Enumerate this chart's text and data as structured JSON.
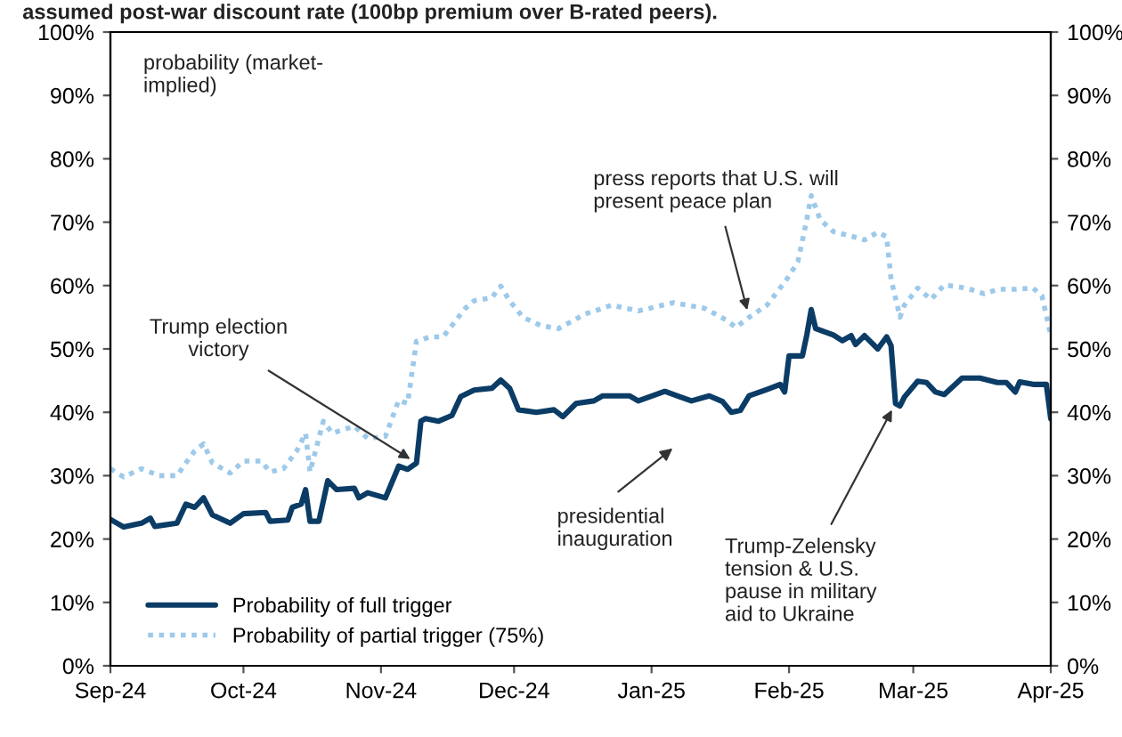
{
  "chart_data": {
    "type": "line",
    "title": "assumed post-war discount rate (100bp premium over B-rated peers).",
    "x": [
      "2024-09-01",
      "2024-09-04",
      "2024-09-08",
      "2024-09-10",
      "2024-09-11",
      "2024-09-16",
      "2024-09-18",
      "2024-09-20",
      "2024-09-22",
      "2024-09-24",
      "2024-09-28",
      "2024-10-01",
      "2024-10-06",
      "2024-10-07",
      "2024-10-11",
      "2024-10-12",
      "2024-10-14",
      "2024-10-15",
      "2024-10-16",
      "2024-10-18",
      "2024-10-20",
      "2024-10-22",
      "2024-10-26",
      "2024-10-27",
      "2024-10-29",
      "2024-11-02",
      "2024-11-05",
      "2024-11-07",
      "2024-11-09",
      "2024-11-10",
      "2024-11-11",
      "2024-11-14",
      "2024-11-17",
      "2024-11-19",
      "2024-11-22",
      "2024-11-26",
      "2024-11-28",
      "2024-11-30",
      "2024-12-02",
      "2024-12-06",
      "2024-12-10",
      "2024-12-12",
      "2024-12-15",
      "2024-12-19",
      "2024-12-21",
      "2024-12-27",
      "2024-12-29",
      "2025-01-04",
      "2025-01-10",
      "2025-01-14",
      "2025-01-17",
      "2025-01-19",
      "2025-01-21",
      "2025-01-23",
      "2025-01-27",
      "2025-01-30",
      "2025-01-31",
      "2025-02-01",
      "2025-02-04",
      "2025-02-05",
      "2025-02-06",
      "2025-02-07",
      "2025-02-11",
      "2025-02-13",
      "2025-02-15",
      "2025-02-16",
      "2025-02-18",
      "2025-02-21",
      "2025-02-23",
      "2025-02-24",
      "2025-02-25",
      "2025-02-26",
      "2025-02-27",
      "2025-03-02",
      "2025-03-04",
      "2025-03-06",
      "2025-03-08",
      "2025-03-12",
      "2025-03-16",
      "2025-03-20",
      "2025-03-22",
      "2025-03-24",
      "2025-03-25",
      "2025-03-28",
      "2025-03-31",
      "2025-04-01"
    ],
    "series": [
      {
        "name": "Probability of full trigger",
        "color": "#0b3c66",
        "line_style": "solid",
        "values": [
          23.1,
          21.9,
          22.5,
          23.3,
          22,
          22.5,
          25.5,
          25,
          26.5,
          23.8,
          22.5,
          24,
          24.2,
          22.8,
          23,
          25,
          25.5,
          27.8,
          22.8,
          22.8,
          29.2,
          27.8,
          28,
          26.5,
          27.3,
          26.5,
          31.5,
          31,
          32,
          38.6,
          39,
          38.6,
          39.5,
          42.5,
          43.5,
          43.8,
          45.1,
          43.8,
          40.4,
          40,
          40.4,
          39.3,
          41.4,
          41.8,
          42.6,
          42.6,
          41.8,
          43.3,
          41.8,
          42.6,
          41.7,
          40,
          40.3,
          42.6,
          43.6,
          44.4,
          43.2,
          48.9,
          48.9,
          52.2,
          56.2,
          53.2,
          52.2,
          51.3,
          52.1,
          50.7,
          52.1,
          50,
          51.9,
          50.5,
          41.4,
          41,
          42.4,
          44.9,
          44.7,
          43.2,
          42.8,
          45.4,
          45.4,
          44.7,
          44.7,
          43.2,
          44.8,
          44.4,
          44.4,
          39
        ]
      },
      {
        "name": "Probability of partial trigger (75%)",
        "color": "#9dc9ea",
        "line_style": "dotted",
        "x": [
          "2024-09-01",
          "2024-09-04",
          "2024-09-08",
          "2024-09-12",
          "2024-09-16",
          "2024-09-18",
          "2024-09-20",
          "2024-09-22",
          "2024-09-24",
          "2024-09-28",
          "2024-10-01",
          "2024-10-05",
          "2024-10-07",
          "2024-10-10",
          "2024-10-13",
          "2024-10-15",
          "2024-10-16",
          "2024-10-19",
          "2024-10-21",
          "2024-10-26",
          "2024-10-29",
          "2024-11-02",
          "2024-11-05",
          "2024-11-07",
          "2024-11-09",
          "2024-11-12",
          "2024-11-15",
          "2024-11-20",
          "2024-11-22",
          "2024-11-26",
          "2024-11-28",
          "2024-11-30",
          "2024-12-03",
          "2024-12-07",
          "2024-12-11",
          "2024-12-17",
          "2024-12-23",
          "2024-12-29",
          "2025-01-06",
          "2025-01-13",
          "2025-01-18",
          "2025-01-20",
          "2025-01-23",
          "2025-01-27",
          "2025-01-30",
          "2025-02-01",
          "2025-02-03",
          "2025-02-05",
          "2025-02-06",
          "2025-02-08",
          "2025-02-11",
          "2025-02-15",
          "2025-02-18",
          "2025-02-21",
          "2025-02-23",
          "2025-02-24",
          "2025-02-26",
          "2025-02-27",
          "2025-03-02",
          "2025-03-05",
          "2025-03-08",
          "2025-03-13",
          "2025-03-17",
          "2025-03-20",
          "2025-03-24",
          "2025-03-28",
          "2025-03-30",
          "2025-04-01"
        ],
        "values": [
          31.1,
          29.8,
          31.1,
          30,
          30,
          32,
          33.9,
          35,
          32,
          30.4,
          32.3,
          32.3,
          30.6,
          31.1,
          33.9,
          36.7,
          30.6,
          38.6,
          36.7,
          37.8,
          35.9,
          36.2,
          41.9,
          41.4,
          51.2,
          51.9,
          51.9,
          56.4,
          57.6,
          58.1,
          59.9,
          57.6,
          55,
          53.7,
          53.2,
          55.5,
          56.9,
          56,
          57.3,
          56.4,
          54.5,
          53.4,
          55,
          56.9,
          59.6,
          61.5,
          63.8,
          70.4,
          74.2,
          70.4,
          68.5,
          67.8,
          67.2,
          68.4,
          67.7,
          61,
          55,
          56.9,
          59.6,
          57.8,
          60.1,
          59.6,
          58.7,
          59.4,
          59.4,
          59.6,
          58.4,
          52.2
        ]
      }
    ],
    "xlim": [
      "2024-09-01",
      "2025-04-01"
    ],
    "xticks": [
      {
        "value": "2024-09-01",
        "label": "Sep-24"
      },
      {
        "value": "2024-10-01",
        "label": "Oct-24"
      },
      {
        "value": "2024-11-01",
        "label": "Nov-24"
      },
      {
        "value": "2024-12-01",
        "label": "Dec-24"
      },
      {
        "value": "2025-01-01",
        "label": "Jan-25"
      },
      {
        "value": "2025-02-01",
        "label": "Feb-25"
      },
      {
        "value": "2025-03-01",
        "label": "Mar-25"
      },
      {
        "value": "2025-04-01",
        "label": "Apr-25"
      }
    ],
    "ylim": [
      0,
      100
    ],
    "yticks": [
      {
        "value": 0,
        "label": "0%"
      },
      {
        "value": 10,
        "label": "10%"
      },
      {
        "value": 20,
        "label": "20%"
      },
      {
        "value": 30,
        "label": "30%"
      },
      {
        "value": 40,
        "label": "40%"
      },
      {
        "value": 50,
        "label": "50%"
      },
      {
        "value": 60,
        "label": "60%"
      },
      {
        "value": 70,
        "label": "70%"
      },
      {
        "value": 80,
        "label": "80%"
      },
      {
        "value": 90,
        "label": "90%"
      },
      {
        "value": 100,
        "label": "100%"
      }
    ],
    "y2lim": [
      0,
      100
    ],
    "y2ticks": [
      {
        "value": 0,
        "label": "0%"
      },
      {
        "value": 10,
        "label": "10%"
      },
      {
        "value": 20,
        "label": "20%"
      },
      {
        "value": 30,
        "label": "30%"
      },
      {
        "value": 40,
        "label": "40%"
      },
      {
        "value": 50,
        "label": "50%"
      },
      {
        "value": 60,
        "label": "60%"
      },
      {
        "value": 70,
        "label": "70%"
      },
      {
        "value": 80,
        "label": "80%"
      },
      {
        "value": 90,
        "label": "90%"
      },
      {
        "value": 100,
        "label": "100%"
      }
    ],
    "annotations": [
      "probability (market-\nimplied)",
      {
        "text": "Trump election\nvictory",
        "x": "2024-11-09",
        "y": 32
      },
      "presidential\ninauguration",
      {
        "text": "press reports that U.S. will\npresent peace plan",
        "x": "2025-01-23",
        "y": 55
      },
      {
        "text": "Trump-Zelensky\ntension & U.S.\npause in military\naid to Ukraine",
        "x": "2025-02-25",
        "y": 41.4
      }
    ],
    "legend": "bottom left",
    "grid": false
  }
}
